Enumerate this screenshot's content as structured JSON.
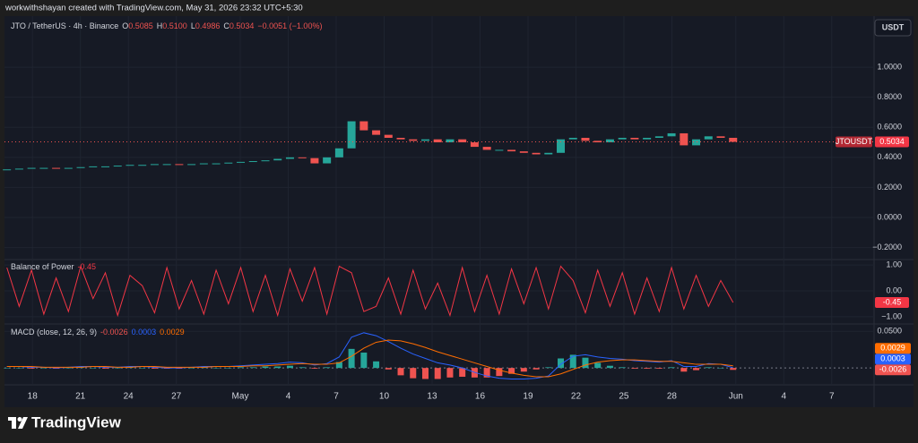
{
  "top_bar": "workwithshayan created with TradingView.com, May 31, 2026 23:32 UTC+5:30",
  "currency_button": "USDT",
  "footer_brand": "TradingView",
  "chart_data": [
    {
      "type": "candlestick",
      "title": "JTO / TetherUS · 4h · Binance",
      "ohlc": [
        {
          "key": "O",
          "value": "0.5085"
        },
        {
          "key": "H",
          "value": "0.5100"
        },
        {
          "key": "L",
          "value": "0.4986"
        },
        {
          "key": "C",
          "value": "0.5034"
        }
      ],
      "change": "−0.0051 (−1.00%)",
      "symbol_tag": "JTOUSDT",
      "up_color": "#26a69a",
      "down_color": "#ef5350",
      "x": [
        -1.6,
        -0.83,
        -0.06,
        0.71,
        1.48,
        2.25,
        3.02,
        3.79,
        4.56,
        5.33,
        6.1,
        6.87,
        7.64,
        8.41,
        9.18,
        9.95,
        10.72,
        11.49,
        12.26,
        13.03,
        13.8,
        14.57,
        15.34,
        16.11,
        16.88,
        17.65,
        18.42,
        19.19,
        19.96,
        20.73,
        21.5,
        22.27,
        23.04,
        23.81,
        24.58,
        25.35,
        26.12,
        26.89,
        27.66,
        28.43,
        29.2,
        29.97,
        30.74,
        31.51,
        32.28,
        33.05,
        33.82,
        34.59,
        35.36,
        36.13,
        36.9,
        37.67,
        38.44,
        39.21,
        39.98,
        40.75,
        41.52,
        42.29,
        43.06,
        43.83
      ],
      "values": [
        0.32,
        0.325,
        0.33,
        0.33,
        0.325,
        0.33,
        0.335,
        0.34,
        0.34,
        0.345,
        0.35,
        0.35,
        0.355,
        0.355,
        0.35,
        0.355,
        0.36,
        0.36,
        0.365,
        0.37,
        0.375,
        0.38,
        0.39,
        0.4,
        0.395,
        0.36,
        0.4,
        0.46,
        0.64,
        0.58,
        0.55,
        0.53,
        0.52,
        0.51,
        0.52,
        0.5,
        0.52,
        0.5,
        0.47,
        0.45,
        0.45,
        0.44,
        0.43,
        0.42,
        0.43,
        0.52,
        0.53,
        0.51,
        0.5,
        0.52,
        0.53,
        0.52,
        0.53,
        0.54,
        0.56,
        0.48,
        0.52,
        0.54,
        0.53,
        0.5034
      ],
      "xlim": [
        -1.75,
        52.65
      ],
      "xticks": [
        {
          "value": 0,
          "label": "18"
        },
        {
          "value": 3,
          "label": "21"
        },
        {
          "value": 6,
          "label": "24"
        },
        {
          "value": 9,
          "label": "27"
        },
        {
          "value": 13,
          "label": "May"
        },
        {
          "value": 16,
          "label": "4"
        },
        {
          "value": 19,
          "label": "7"
        },
        {
          "value": 22,
          "label": "10"
        },
        {
          "value": 25,
          "label": "13"
        },
        {
          "value": 28,
          "label": "16"
        },
        {
          "value": 31,
          "label": "19"
        },
        {
          "value": 34,
          "label": "22"
        },
        {
          "value": 37,
          "label": "25"
        },
        {
          "value": 40,
          "label": "28"
        },
        {
          "value": 44,
          "label": "Jun"
        },
        {
          "value": 47,
          "label": "4"
        },
        {
          "value": 50,
          "label": "7"
        }
      ],
      "ylim": [
        -0.28,
        1.34
      ],
      "yticks": [
        {
          "value": 1,
          "label": "1.0000"
        },
        {
          "value": 0.8,
          "label": "0.8000"
        },
        {
          "value": 0.6,
          "label": "0.6000"
        },
        {
          "value": 0.4,
          "label": "0.4000"
        },
        {
          "value": 0.2,
          "label": "0.2000"
        },
        {
          "value": 0,
          "label": "0.0000"
        },
        {
          "value": -0.2,
          "label": "−0.2000"
        }
      ],
      "grid": true
    },
    {
      "type": "line",
      "title": "Balance of Power",
      "color": "#f23645",
      "values": [
        0.9,
        -0.6,
        0.8,
        -0.9,
        0.5,
        -0.8,
        0.95,
        -0.3,
        0.7,
        -0.95,
        0.6,
        0.2,
        -0.85,
        0.9,
        -0.7,
        0.4,
        -0.9,
        0.8,
        -0.5,
        0.9,
        -0.8,
        0.6,
        -0.95,
        0.85,
        -0.4,
        0.9,
        -0.9,
        0.95,
        0.7,
        -0.8,
        -0.6,
        0.5,
        -0.9,
        0.8,
        -0.7,
        0.3,
        -0.95,
        0.9,
        -0.8,
        0.6,
        -0.9,
        0.85,
        -0.5,
        0.9,
        -0.7,
        0.95,
        0.4,
        -0.85,
        0.8,
        -0.6,
        0.7,
        -0.9,
        0.5,
        -0.8,
        0.9,
        -0.7,
        0.6,
        -0.6,
        0.4,
        -0.45
      ],
      "ylim": [
        -1.28,
        1.21
      ],
      "yticks": [
        {
          "value": 1,
          "label": "1.00"
        },
        {
          "value": 0,
          "label": "0.00"
        },
        {
          "value": -1,
          "label": "−1.00"
        }
      ],
      "grid": true
    },
    {
      "type": "macd",
      "title": "MACD (close, 12, 26, 9)",
      "histogram": {
        "up_color": "#26a69a",
        "down_color": "#ef5350",
        "values": [
          0,
          0,
          -0.001,
          0,
          -0.001,
          0,
          0.001,
          0,
          -0.001,
          0,
          0.001,
          0,
          -0.001,
          -0.001,
          -0.001,
          0,
          0.001,
          0,
          0,
          0.001,
          0.001,
          0.002,
          0.002,
          0.003,
          0.001,
          -0.001,
          0.001,
          0.008,
          0.026,
          0.021,
          0.009,
          -0.002,
          -0.01,
          -0.014,
          -0.015,
          -0.015,
          -0.013,
          -0.012,
          -0.013,
          -0.013,
          -0.011,
          -0.008,
          -0.005,
          -0.002,
          0.001,
          0.013,
          0.018,
          0.014,
          0.007,
          0.003,
          0.001,
          -0.001,
          -0.001,
          -0.001,
          0.001,
          -0.005,
          -0.003,
          0.001,
          0,
          -0.0026
        ]
      },
      "series": [
        {
          "color": "#2962ff",
          "values": [
            0.002,
            0.002,
            0.001,
            0.001,
            0,
            0.001,
            0.002,
            0.002,
            0.001,
            0.001,
            0.002,
            0.002,
            0.001,
            0,
            0,
            0.001,
            0.002,
            0.002,
            0.002,
            0.003,
            0.004,
            0.005,
            0.006,
            0.008,
            0.007,
            0.004,
            0.006,
            0.015,
            0.042,
            0.048,
            0.044,
            0.036,
            0.027,
            0.019,
            0.013,
            0.007,
            0.004,
            0,
            -0.006,
            -0.011,
            -0.014,
            -0.015,
            -0.015,
            -0.014,
            -0.011,
            0.005,
            0.016,
            0.018,
            0.015,
            0.013,
            0.012,
            0.01,
            0.009,
            0.008,
            0.01,
            0.002,
            0.002,
            0.006,
            0.005,
            0.0003
          ]
        },
        {
          "color": "#ff6d00",
          "values": [
            0.002,
            0.002,
            0.002,
            0.001,
            0.001,
            0.001,
            0.001,
            0.002,
            0.002,
            0.001,
            0.001,
            0.002,
            0.002,
            0.001,
            0.001,
            0.001,
            0.001,
            0.002,
            0.002,
            0.002,
            0.003,
            0.003,
            0.004,
            0.005,
            0.006,
            0.005,
            0.005,
            0.007,
            0.016,
            0.027,
            0.035,
            0.038,
            0.037,
            0.033,
            0.028,
            0.022,
            0.017,
            0.012,
            0.007,
            0.002,
            -0.003,
            -0.007,
            -0.01,
            -0.012,
            -0.012,
            -0.008,
            -0.002,
            0.004,
            0.008,
            0.01,
            0.011,
            0.011,
            0.01,
            0.009,
            0.009,
            0.007,
            0.005,
            0.005,
            0.005,
            0.0029
          ]
        }
      ],
      "ylim": [
        -0.023,
        0.06
      ],
      "yticks": [
        {
          "value": 0.05,
          "label": "0.0500"
        }
      ],
      "grid": true
    }
  ]
}
